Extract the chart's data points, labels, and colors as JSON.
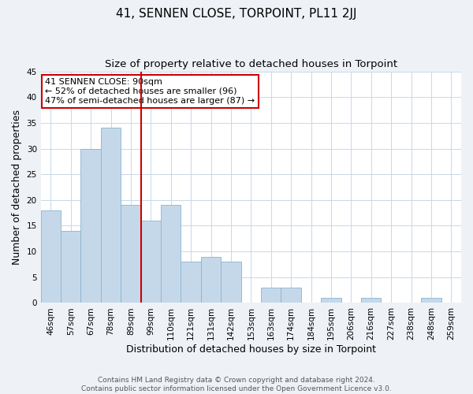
{
  "title": "41, SENNEN CLOSE, TORPOINT, PL11 2JJ",
  "subtitle": "Size of property relative to detached houses in Torpoint",
  "xlabel": "Distribution of detached houses by size in Torpoint",
  "ylabel": "Number of detached properties",
  "bar_labels": [
    "46sqm",
    "57sqm",
    "67sqm",
    "78sqm",
    "89sqm",
    "99sqm",
    "110sqm",
    "121sqm",
    "131sqm",
    "142sqm",
    "153sqm",
    "163sqm",
    "174sqm",
    "184sqm",
    "195sqm",
    "206sqm",
    "216sqm",
    "227sqm",
    "238sqm",
    "248sqm",
    "259sqm"
  ],
  "bar_values": [
    18,
    14,
    30,
    34,
    19,
    16,
    19,
    8,
    9,
    8,
    0,
    3,
    3,
    0,
    1,
    0,
    1,
    0,
    0,
    1,
    0
  ],
  "bar_color": "#c5d8ea",
  "bar_edge_color": "#8ab4d0",
  "vline_x": 4.5,
  "vline_color": "#cc0000",
  "annotation_text": "41 SENNEN CLOSE: 90sqm\n← 52% of detached houses are smaller (96)\n47% of semi-detached houses are larger (87) →",
  "annotation_box_color": "#cc0000",
  "ylim": [
    0,
    45
  ],
  "yticks": [
    0,
    5,
    10,
    15,
    20,
    25,
    30,
    35,
    40,
    45
  ],
  "footer_text": "Contains HM Land Registry data © Crown copyright and database right 2024.\nContains public sector information licensed under the Open Government Licence v3.0.",
  "title_fontsize": 11,
  "subtitle_fontsize": 9.5,
  "axis_label_fontsize": 9,
  "tick_fontsize": 7.5,
  "footer_fontsize": 6.5,
  "annotation_fontsize": 8,
  "bg_color": "#eef2f7",
  "plot_bg_color": "#ffffff",
  "grid_color": "#c8d8e8"
}
